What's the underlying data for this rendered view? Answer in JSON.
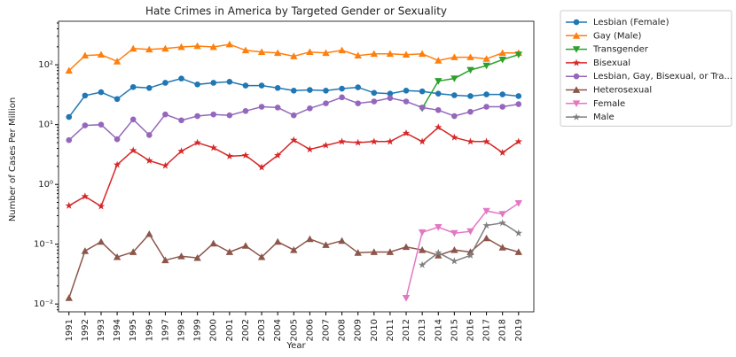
{
  "chart_data": {
    "type": "line",
    "title": "Hate Crimes in America by Targeted Gender or Sexuality",
    "xlabel": "Year",
    "ylabel": "Number of Cases Per Million",
    "log_y": true,
    "legend": "outside upper right",
    "x": [
      1991,
      1992,
      1993,
      1994,
      1995,
      1996,
      1997,
      1998,
      1999,
      2000,
      2001,
      2002,
      2003,
      2004,
      2005,
      2006,
      2007,
      2008,
      2009,
      2010,
      2011,
      2012,
      2013,
      2014,
      2015,
      2016,
      2017,
      2018,
      2019
    ],
    "xlim": [
      1990.35,
      2019.95
    ],
    "xticks": [
      1991,
      1992,
      1993,
      1994,
      1995,
      1996,
      1997,
      1998,
      1999,
      2000,
      2001,
      2002,
      2003,
      2004,
      2005,
      2006,
      2007,
      2008,
      2009,
      2010,
      2011,
      2012,
      2013,
      2014,
      2015,
      2016,
      2017,
      2018,
      2019
    ],
    "ylim": [
      0.0074,
      535
    ],
    "yticks": [
      {
        "value": 0.01,
        "label": "10⁻²"
      },
      {
        "value": 0.1,
        "label": "10⁻¹"
      },
      {
        "value": 1,
        "label": "10⁰"
      },
      {
        "value": 10,
        "label": "10¹"
      },
      {
        "value": 100,
        "label": "10²"
      }
    ],
    "series": [
      {
        "name": "Lesbian (Female)",
        "color": "#1f77b4",
        "marker": "circle",
        "values": [
          13.4,
          30.6,
          34.9,
          26.8,
          42.5,
          41,
          50,
          59,
          47,
          50,
          52,
          45,
          45,
          41,
          37,
          38,
          37,
          40,
          42,
          34,
          33,
          37,
          36,
          33,
          31,
          30,
          32,
          32,
          30
        ]
      },
      {
        "name": "Gay (Male)",
        "color": "#ff7f0e",
        "marker": "triangle-up",
        "values": [
          80,
          143,
          148,
          114,
          187,
          181,
          187,
          199,
          206,
          199,
          220,
          175,
          164,
          158,
          139,
          164,
          158,
          175,
          143,
          153,
          153,
          148,
          153,
          118,
          134,
          134,
          126,
          158,
          158
        ]
      },
      {
        "name": "Transgender",
        "color": "#2ca02c",
        "marker": "triangle-down",
        "values": [
          null,
          null,
          null,
          null,
          null,
          null,
          null,
          null,
          null,
          null,
          null,
          null,
          null,
          null,
          null,
          null,
          null,
          null,
          null,
          null,
          null,
          null,
          18.7,
          53.5,
          59,
          82,
          97,
          122,
          148
        ]
      },
      {
        "name": "Bisexual",
        "color": "#d62728",
        "marker": "star",
        "values": [
          0.44,
          0.63,
          0.43,
          2.13,
          3.7,
          2.5,
          2.06,
          3.6,
          5.0,
          4.1,
          2.96,
          3.06,
          1.93,
          3.06,
          5.5,
          3.85,
          4.5,
          5.2,
          5.0,
          5.2,
          5.2,
          7.2,
          5.2,
          9.0,
          6.1,
          5.2,
          5.2,
          3.4,
          5.2
        ]
      },
      {
        "name": "Lesbian, Gay, Bisexual, or Tra...",
        "color": "#9467bd",
        "marker": "circle",
        "values": [
          5.5,
          9.7,
          10,
          5.7,
          12.2,
          6.7,
          14.8,
          11.8,
          13.9,
          14.8,
          14.3,
          16.9,
          19.9,
          19.3,
          14.3,
          18.7,
          22.7,
          28.6,
          22.7,
          24.4,
          27.8,
          24.4,
          19.3,
          17.5,
          13.9,
          16.4,
          19.9,
          19.9,
          22
        ]
      },
      {
        "name": "Heterosexual",
        "color": "#8c564b",
        "marker": "triangle-up",
        "values": [
          0.0126,
          0.077,
          0.11,
          0.061,
          0.074,
          0.148,
          0.054,
          0.063,
          0.059,
          0.103,
          0.074,
          0.094,
          0.061,
          0.11,
          0.08,
          0.122,
          0.097,
          0.114,
          0.072,
          0.074,
          0.074,
          0.09,
          0.08,
          0.065,
          0.08,
          0.074,
          0.126,
          0.088,
          0.074
        ]
      },
      {
        "name": "Female",
        "color": "#e377c2",
        "marker": "triangle-down",
        "values": [
          null,
          null,
          null,
          null,
          null,
          null,
          null,
          null,
          null,
          null,
          null,
          null,
          null,
          null,
          null,
          null,
          null,
          null,
          null,
          null,
          null,
          0.0126,
          0.158,
          0.193,
          0.153,
          0.164,
          0.36,
          0.32,
          0.485
        ]
      },
      {
        "name": "Male",
        "color": "#7f7f7f",
        "marker": "star",
        "values": [
          null,
          null,
          null,
          null,
          null,
          null,
          null,
          null,
          null,
          null,
          null,
          null,
          null,
          null,
          null,
          null,
          null,
          null,
          null,
          null,
          null,
          null,
          0.045,
          0.072,
          0.052,
          0.065,
          0.206,
          0.227,
          0.153
        ]
      }
    ]
  }
}
